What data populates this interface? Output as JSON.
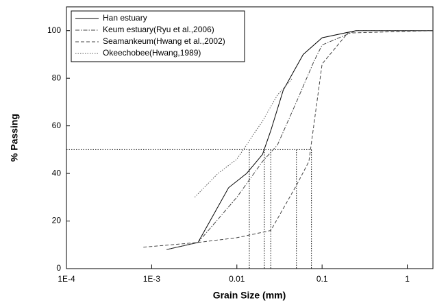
{
  "chart_data": {
    "type": "line",
    "xlabel": "Grain Size (mm)",
    "ylabel": "% Passing",
    "xscale": "log",
    "xlim": [
      0.0001,
      2
    ],
    "ylim": [
      0,
      110
    ],
    "xticks": [
      {
        "value": 0.0001,
        "label": "1E-4"
      },
      {
        "value": 0.001,
        "label": "1E-3"
      },
      0.01,
      0.1,
      1
    ],
    "yticks": [
      0,
      20,
      40,
      60,
      80,
      100
    ],
    "legend": "top-left",
    "series": [
      {
        "name": "Han estuary",
        "color": "#000000",
        "dash": "solid",
        "x": [
          0.0015,
          0.0035,
          0.008,
          0.013,
          0.02,
          0.025,
          0.035,
          0.06,
          0.1,
          0.25,
          2
        ],
        "values": [
          8,
          11,
          34,
          40,
          48,
          58,
          75,
          90,
          97,
          100,
          100
        ]
      },
      {
        "name": "Keum estuary(Ryu et al.,2006)",
        "color": "#444444",
        "dash": "dashdot",
        "x": [
          0.0015,
          0.0035,
          0.01,
          0.02,
          0.03,
          0.05,
          0.08,
          0.1,
          0.25,
          2
        ],
        "values": [
          8,
          11,
          30,
          45,
          52,
          70,
          87,
          94,
          100,
          100
        ]
      },
      {
        "name": "Seamankeum(Hwang et al.,2002)",
        "color": "#444444",
        "dash": "dashed",
        "x": [
          0.0008,
          0.0035,
          0.01,
          0.025,
          0.05,
          0.07,
          0.1,
          0.2,
          2
        ],
        "values": [
          9,
          11,
          13,
          16,
          35,
          45,
          86,
          99,
          100
        ]
      },
      {
        "name": "Okeechobee(Hwang,1989)",
        "color": "#555555",
        "dash": "dotted",
        "x": [
          0.0032,
          0.006,
          0.01,
          0.02,
          0.03,
          0.045
        ],
        "values": [
          30,
          40,
          46,
          62,
          73,
          80
        ]
      }
    ],
    "d50_lines": {
      "y": 50,
      "x": [
        0.014,
        0.021,
        0.025,
        0.05,
        0.075
      ]
    }
  }
}
